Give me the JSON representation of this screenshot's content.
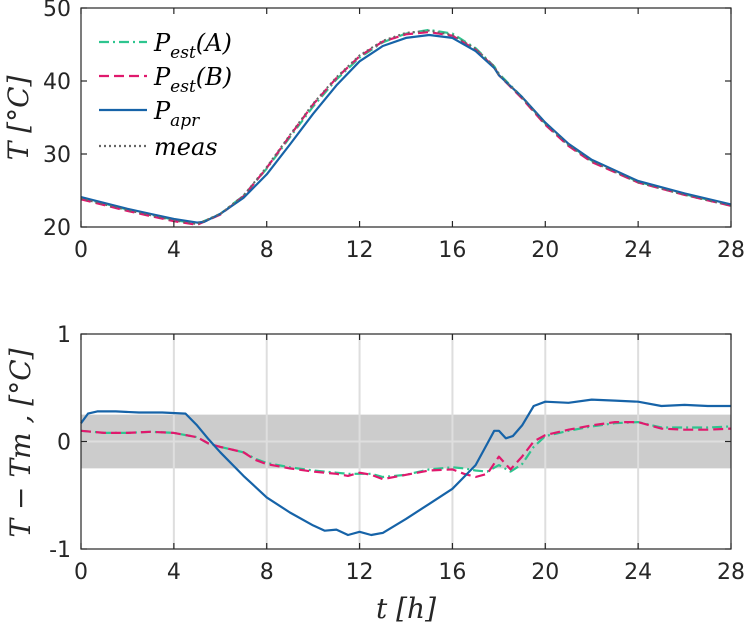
{
  "chart_data": [
    {
      "type": "line",
      "xlabel": "",
      "ylabel": "T [°C]",
      "xlim": [
        0,
        28
      ],
      "ylim": [
        20,
        50
      ],
      "xticks": [
        0,
        4,
        8,
        12,
        16,
        20,
        24,
        28
      ],
      "yticks": [
        20,
        30,
        40,
        50
      ],
      "grid": false,
      "legend": {
        "placement": "top-left",
        "entries": [
          {
            "base": "P",
            "sub": "est",
            "suffix": "(A)"
          },
          {
            "base": "P",
            "sub": "est",
            "suffix": "(B)"
          },
          {
            "base": "P",
            "sub": "apr",
            "suffix": ""
          },
          {
            "base": "meas",
            "sub": "",
            "suffix": ""
          }
        ]
      },
      "series": [
        {
          "name": "Pest(A)",
          "color": "#2ec58f",
          "dash": "dashdot",
          "x": [
            0,
            1,
            2,
            3,
            4,
            5,
            6,
            7,
            8,
            9,
            10,
            11,
            12,
            13,
            14,
            15,
            16,
            17,
            17.8,
            18,
            19,
            20,
            21,
            22,
            24,
            26,
            28
          ],
          "y": [
            24,
            23.2,
            22.4,
            21.7,
            21.0,
            20.4,
            21.8,
            24.3,
            28.0,
            32.3,
            36.5,
            40.2,
            43.2,
            45.3,
            46.5,
            47.0,
            46.5,
            44.5,
            42.0,
            41.0,
            37.8,
            34.2,
            31.3,
            29.1,
            26.2,
            24.5,
            23.0
          ]
        },
        {
          "name": "Pest(B)",
          "color": "#e0196d",
          "dash": "dashed",
          "x": [
            0,
            1,
            2,
            3,
            4,
            5,
            6,
            7,
            8,
            9,
            10,
            11,
            12,
            13,
            14,
            15,
            16,
            17,
            17.8,
            18,
            19,
            20,
            21,
            22,
            24,
            26,
            28
          ],
          "y": [
            23.8,
            23.0,
            22.2,
            21.5,
            20.8,
            20.3,
            21.7,
            24.2,
            28.1,
            32.5,
            36.8,
            40.4,
            43.4,
            45.4,
            46.4,
            46.7,
            46.2,
            44.3,
            41.9,
            40.8,
            37.6,
            34.0,
            31.1,
            28.9,
            26.1,
            24.4,
            22.9
          ]
        },
        {
          "name": "Papr",
          "color": "#1663a8",
          "dash": "solid",
          "x": [
            0,
            1,
            2,
            3,
            4,
            5,
            5.3,
            6,
            7,
            8,
            9,
            10,
            11,
            12,
            13,
            14,
            15,
            16,
            17,
            17.8,
            18,
            19,
            20,
            21,
            22,
            24,
            26,
            28
          ],
          "y": [
            24.1,
            23.3,
            22.5,
            21.8,
            21.1,
            20.6,
            20.7,
            21.8,
            24.0,
            27.2,
            31.3,
            35.5,
            39.4,
            42.7,
            44.8,
            45.9,
            46.3,
            45.9,
            44.1,
            41.8,
            40.8,
            37.8,
            34.3,
            31.4,
            29.2,
            26.3,
            24.6,
            23.1
          ]
        },
        {
          "name": "meas",
          "color": "#666666",
          "dash": "dotted",
          "x": [
            0,
            1,
            2,
            3,
            4,
            5,
            6,
            7,
            8,
            9,
            10,
            11,
            12,
            13,
            14,
            15,
            16,
            17,
            17.8,
            18,
            19,
            20,
            21,
            22,
            24,
            26,
            28
          ],
          "y": [
            23.9,
            23.1,
            22.3,
            21.6,
            20.9,
            20.4,
            21.8,
            24.3,
            28.2,
            32.6,
            36.9,
            40.5,
            43.5,
            45.5,
            46.6,
            46.9,
            46.3,
            44.4,
            42.0,
            40.9,
            37.7,
            34.1,
            31.2,
            29.0,
            26.1,
            24.4,
            22.9
          ]
        }
      ]
    },
    {
      "type": "line",
      "xlabel": "t [h]",
      "ylabel": "T − Tm , [°C]",
      "xlim": [
        0,
        28
      ],
      "ylim": [
        -1,
        1
      ],
      "xticks": [
        0,
        4,
        8,
        12,
        16,
        20,
        24,
        28
      ],
      "yticks": [
        -1,
        0,
        1
      ],
      "grid": true,
      "band": [
        -0.25,
        0.25
      ],
      "series": [
        {
          "name": "Pest(A)",
          "color": "#2ec58f",
          "dash": "dashdot",
          "x": [
            0,
            0.5,
            1,
            2,
            3,
            4,
            5,
            5.5,
            6,
            7,
            7.5,
            8,
            9,
            10,
            11,
            11.5,
            12,
            12.5,
            13,
            14,
            15,
            16,
            16.5,
            17,
            17.5,
            18,
            18.5,
            19,
            19.5,
            20,
            21,
            22,
            23,
            24,
            25,
            26,
            27,
            28
          ],
          "y": [
            0.1,
            0.09,
            0.08,
            0.08,
            0.09,
            0.08,
            0.04,
            -0.02,
            -0.05,
            -0.1,
            -0.16,
            -0.2,
            -0.24,
            -0.27,
            -0.29,
            -0.3,
            -0.3,
            -0.3,
            -0.33,
            -0.31,
            -0.26,
            -0.24,
            -0.25,
            -0.27,
            -0.28,
            -0.22,
            -0.28,
            -0.21,
            -0.05,
            0.05,
            0.1,
            0.14,
            0.17,
            0.18,
            0.13,
            0.13,
            0.13,
            0.14
          ]
        },
        {
          "name": "Pest(B)",
          "color": "#e0196d",
          "dash": "dashed",
          "x": [
            0,
            0.5,
            1,
            2,
            3,
            4,
            5,
            5.5,
            6,
            7,
            7.5,
            8,
            9,
            10,
            11,
            11.5,
            12,
            12.5,
            13,
            14,
            15,
            16,
            16.5,
            17,
            17.5,
            18,
            18.5,
            19,
            19.5,
            20,
            21,
            22,
            23,
            24,
            25,
            26,
            27,
            28
          ],
          "y": [
            0.1,
            0.09,
            0.08,
            0.08,
            0.09,
            0.08,
            0.04,
            -0.02,
            -0.05,
            -0.1,
            -0.17,
            -0.21,
            -0.25,
            -0.28,
            -0.3,
            -0.32,
            -0.29,
            -0.31,
            -0.35,
            -0.31,
            -0.27,
            -0.26,
            -0.3,
            -0.33,
            -0.3,
            -0.14,
            -0.26,
            -0.14,
            0.0,
            0.06,
            0.11,
            0.15,
            0.18,
            0.18,
            0.12,
            0.11,
            0.11,
            0.12
          ]
        },
        {
          "name": "Papr",
          "color": "#1663a8",
          "dash": "solid",
          "x": [
            0,
            0.3,
            0.7,
            1.5,
            2.5,
            3.5,
            4.5,
            5,
            5.5,
            6,
            7,
            8,
            9,
            10,
            10.5,
            11,
            11.5,
            12,
            12.5,
            13,
            14,
            15,
            16,
            16.5,
            17,
            17.5,
            17.8,
            18,
            18.3,
            18.6,
            19,
            19.5,
            20,
            21,
            22,
            23,
            24,
            25,
            26,
            27,
            28
          ],
          "y": [
            0.17,
            0.26,
            0.28,
            0.28,
            0.27,
            0.27,
            0.26,
            0.15,
            0.02,
            -0.1,
            -0.32,
            -0.52,
            -0.66,
            -0.78,
            -0.83,
            -0.82,
            -0.87,
            -0.84,
            -0.87,
            -0.85,
            -0.72,
            -0.58,
            -0.44,
            -0.33,
            -0.22,
            -0.02,
            0.1,
            0.1,
            0.03,
            0.05,
            0.15,
            0.33,
            0.37,
            0.36,
            0.39,
            0.38,
            0.37,
            0.33,
            0.34,
            0.33,
            0.33
          ]
        }
      ]
    }
  ]
}
